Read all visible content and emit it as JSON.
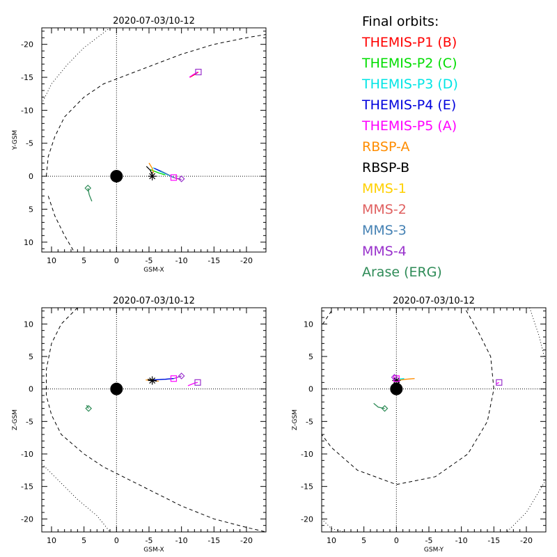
{
  "chart_data": [
    {
      "type": "scatter",
      "title": "2020-07-03/10-12",
      "xlabel": "GSM-X",
      "ylabel": "Y-GSM",
      "xlim": [
        11.5,
        -23
      ],
      "ylim": [
        11.5,
        -22.5
      ],
      "xticks": [
        "10",
        "5",
        "0",
        "-5",
        "-10",
        "-15",
        "-20"
      ],
      "yticks": [
        "-20",
        "-15",
        "-10",
        "-5",
        "0",
        "5",
        "10"
      ],
      "earth": [
        0,
        0
      ],
      "magnetopause_dashed": [
        [
          10.8,
          0
        ],
        [
          10.5,
          -3
        ],
        [
          9.5,
          -6
        ],
        [
          8,
          -9
        ],
        [
          5,
          -12
        ],
        [
          2,
          -14
        ],
        [
          -2,
          -15.5
        ],
        [
          -6,
          -17
        ],
        [
          -10,
          -18.5
        ],
        [
          -15,
          -20
        ],
        [
          -20,
          -21
        ],
        [
          -23,
          -21.5
        ]
      ],
      "magnetopause_dashed_south": [
        [
          10.5,
          3
        ],
        [
          9.5,
          6
        ],
        [
          8,
          9
        ],
        [
          6.5,
          11.5
        ]
      ],
      "bow_shock_dotted": [
        [
          11.5,
          -11
        ],
        [
          10,
          -14
        ],
        [
          7.5,
          -17
        ],
        [
          5,
          -19.5
        ],
        [
          3,
          -21
        ],
        [
          1,
          -22.5
        ]
      ],
      "series": [
        {
          "name": "THEMIS-P1 (B)",
          "color": "#ff0000",
          "points": [
            [
              -12.6,
              -15.8
            ],
            [
              -12,
              -15.4
            ],
            [
              -11.3,
              -15
            ]
          ]
        },
        {
          "name": "THEMIS-P2 (C)",
          "color": "#00dd00",
          "points": [
            [
              -5.2,
              -1
            ],
            [
              -6.5,
              -0.5
            ],
            [
              -7.5,
              -0.2
            ]
          ]
        },
        {
          "name": "THEMIS-P3 (D)",
          "color": "#00e5e5",
          "points": [
            [
              -5.6,
              -1.3
            ],
            [
              -7,
              -0.6
            ],
            [
              -8.8,
              0.2
            ]
          ]
        },
        {
          "name": "THEMIS-P4 (E)",
          "color": "#0000dd",
          "points": [
            [
              -5.8,
              -1.2
            ],
            [
              -7.2,
              -0.6
            ],
            [
              -8.8,
              0.2
            ]
          ]
        },
        {
          "name": "THEMIS-P5 (A)",
          "color": "#ff00ff",
          "points": [
            [
              -12.5,
              -15.8
            ],
            [
              -11.8,
              -15.4
            ],
            [
              -11.2,
              -15
            ]
          ]
        },
        {
          "name": "RBSP-A",
          "color": "#ff8c00",
          "points": [
            [
              -5,
              -2
            ],
            [
              -5.5,
              -1.2
            ],
            [
              -5.7,
              -0.5
            ]
          ]
        },
        {
          "name": "RBSP-B",
          "color": "#000000",
          "points": [
            [
              -4.6,
              -1.5
            ],
            [
              -5.2,
              -0.9
            ],
            [
              -5.6,
              0
            ]
          ]
        },
        {
          "name": "MMS-1",
          "color": "#ffd000",
          "points": [
            [
              -8.8,
              0.2
            ],
            [
              -9.8,
              0.5
            ]
          ]
        },
        {
          "name": "MMS-2",
          "color": "#e06060",
          "points": [
            [
              -8.8,
              0.2
            ],
            [
              -9.8,
              0.5
            ]
          ]
        },
        {
          "name": "MMS-3",
          "color": "#4682b4",
          "points": [
            [
              -6.8,
              -0.8
            ],
            [
              -8.8,
              0.2
            ]
          ]
        },
        {
          "name": "MMS-4",
          "color": "#9932cc",
          "points": [
            [
              -8.8,
              0.2
            ],
            [
              -10,
              0.5
            ]
          ]
        },
        {
          "name": "Arase (ERG)",
          "color": "#2e8b57",
          "points": [
            [
              4.4,
              1.8
            ],
            [
              4.2,
              2.8
            ],
            [
              3.8,
              3.8
            ]
          ]
        }
      ],
      "markers": [
        {
          "shape": "star",
          "at": [
            -5.5,
            0
          ]
        },
        {
          "shape": "square",
          "at": [
            -8.8,
            0.2
          ],
          "color": "#ff00ff"
        },
        {
          "shape": "diamond",
          "at": [
            -10,
            0.4
          ],
          "color": "#9932cc"
        },
        {
          "shape": "square",
          "at": [
            -12.6,
            -15.8
          ],
          "color": "#9932cc"
        },
        {
          "shape": "diamond",
          "at": [
            4.4,
            1.8
          ],
          "color": "#2e8b57"
        }
      ]
    },
    {
      "type": "scatter",
      "title": "2020-07-03/10-12",
      "xlabel": "GSM-X",
      "ylabel": "Z-GSM",
      "xlim": [
        11.5,
        -23
      ],
      "ylim": [
        -22,
        12.5
      ],
      "xticks": [
        "10",
        "5",
        "0",
        "-5",
        "-10",
        "-15",
        "-20"
      ],
      "yticks": [
        "10",
        "5",
        "0",
        "-5",
        "-10",
        "-15",
        "-20"
      ],
      "earth": [
        0,
        0
      ],
      "magnetopause_dashed": [
        [
          6,
          12.5
        ],
        [
          8.5,
          10
        ],
        [
          10,
          7
        ],
        [
          10.8,
          3
        ],
        [
          10.8,
          -1
        ],
        [
          10,
          -4
        ],
        [
          8.5,
          -7
        ],
        [
          5,
          -10
        ],
        [
          2,
          -12
        ],
        [
          -2,
          -14
        ],
        [
          -6,
          -16
        ],
        [
          -10,
          -18
        ],
        [
          -15,
          -20
        ],
        [
          -20,
          -21.3
        ],
        [
          -23,
          -22
        ]
      ],
      "bow_shock_dotted": [
        [
          11.5,
          -11.5
        ],
        [
          9,
          -14
        ],
        [
          6,
          -17
        ],
        [
          3,
          -19.5
        ],
        [
          1,
          -22
        ]
      ],
      "series": [
        {
          "name": "THEMIS-P3 (D)",
          "color": "#00e5e5",
          "points": [
            [
              -5.6,
              1.4
            ],
            [
              -7.5,
              1.5
            ],
            [
              -8.8,
              1.6
            ]
          ]
        },
        {
          "name": "THEMIS-P4 (E)",
          "color": "#0000dd",
          "points": [
            [
              -5.6,
              1.4
            ],
            [
              -7.5,
              1.5
            ],
            [
              -8.8,
              1.6
            ]
          ]
        },
        {
          "name": "THEMIS-P5 (A)",
          "color": "#ff00ff",
          "points": [
            [
              -11,
              0.5
            ],
            [
              -12,
              0.9
            ],
            [
              -12.5,
              1
            ]
          ]
        },
        {
          "name": "RBSP-A",
          "color": "#ff8c00",
          "points": [
            [
              -4.5,
              1.4
            ],
            [
              -5.5,
              1.3
            ],
            [
              -6.5,
              1.2
            ]
          ]
        },
        {
          "name": "RBSP-B",
          "color": "#000000",
          "points": [
            [
              -4.8,
              1.5
            ],
            [
              -5.6,
              1.3
            ],
            [
              -6.2,
              1.2
            ]
          ]
        },
        {
          "name": "MMS-4",
          "color": "#9932cc",
          "points": [
            [
              -8.8,
              1.6
            ],
            [
              -10,
              2
            ]
          ]
        },
        {
          "name": "Arase (ERG)",
          "color": "#2e8b57",
          "points": [
            [
              4.6,
              -2.5
            ],
            [
              4.3,
              -3
            ]
          ]
        }
      ],
      "markers": [
        {
          "shape": "star",
          "at": [
            -5.5,
            1.3
          ]
        },
        {
          "shape": "square",
          "at": [
            -8.8,
            1.6
          ],
          "color": "#ff00ff"
        },
        {
          "shape": "diamond",
          "at": [
            -10,
            2
          ],
          "color": "#9932cc"
        },
        {
          "shape": "square",
          "at": [
            -12.5,
            1
          ],
          "color": "#9932cc"
        },
        {
          "shape": "diamond",
          "at": [
            4.3,
            -3
          ],
          "color": "#2e8b57"
        }
      ]
    },
    {
      "type": "scatter",
      "title": "2020-07-03/10-12",
      "xlabel": "GSM-Y",
      "ylabel": "Z-GSM",
      "xlim": [
        11.5,
        -23
      ],
      "ylim": [
        -22,
        12.5
      ],
      "xticks": [
        "10",
        "5",
        "0",
        "-5",
        "-10",
        "-15",
        "-20"
      ],
      "yticks": [
        "10",
        "5",
        "0",
        "-5",
        "-10",
        "-15",
        "-20"
      ],
      "earth": [
        0,
        0
      ],
      "magnetopause_dashed": [
        [
          10,
          12
        ],
        [
          12,
          9
        ],
        [
          13.5,
          5
        ],
        [
          14,
          0
        ],
        [
          13,
          -5
        ],
        [
          10,
          -9
        ],
        [
          6,
          -12.5
        ],
        [
          0,
          -14.7
        ],
        [
          -6,
          -13.5
        ],
        [
          -11,
          -10
        ],
        [
          -14,
          -5
        ],
        [
          -15,
          0
        ],
        [
          -14.5,
          5
        ],
        [
          -12.5,
          9
        ],
        [
          -10.5,
          12.5
        ]
      ],
      "bow_shock_dotted": [
        [
          -20.5,
          12.5
        ],
        [
          -22,
          8
        ],
        [
          -23,
          4
        ]
      ],
      "bow_shock_dotted_2": [
        [
          -23,
          -14
        ],
        [
          -20,
          -19
        ],
        [
          -17,
          -22
        ]
      ],
      "bow_shock_dotted_3": [
        [
          11.5,
          -20
        ],
        [
          10,
          -21.5
        ],
        [
          8,
          -22
        ]
      ],
      "series": [
        {
          "name": "THEMIS-P5 (A)",
          "color": "#ff00ff",
          "points": [
            [
              -15.4,
              0.8
            ],
            [
              -15.8,
              1
            ]
          ]
        },
        {
          "name": "RBSP-A",
          "color": "#ff8c00",
          "points": [
            [
              0,
              1.3
            ],
            [
              -1.5,
              1.5
            ],
            [
              -2.8,
              1.6
            ]
          ]
        },
        {
          "name": "RBSP-B",
          "color": "#000000",
          "points": [
            [
              -0.5,
              1
            ],
            [
              0,
              1.3
            ],
            [
              0.3,
              1.6
            ]
          ]
        },
        {
          "name": "THEMIS-P3 (D)",
          "color": "#00e5e5",
          "points": [
            [
              -0.2,
              1.5
            ],
            [
              -1.2,
              1.6
            ]
          ]
        },
        {
          "name": "MMS-4",
          "color": "#9932cc",
          "points": [
            [
              0.3,
              1.8
            ],
            [
              -0.2,
              1.3
            ]
          ]
        },
        {
          "name": "Arase (ERG)",
          "color": "#2e8b57",
          "points": [
            [
              3.5,
              -2.2
            ],
            [
              2.8,
              -2.8
            ],
            [
              1.8,
              -3
            ]
          ]
        }
      ],
      "markers": [
        {
          "shape": "star",
          "at": [
            0,
            1.3
          ]
        },
        {
          "shape": "square",
          "at": [
            0,
            1.6
          ],
          "color": "#ff00ff"
        },
        {
          "shape": "diamond",
          "at": [
            0.3,
            1.8
          ],
          "color": "#9932cc"
        },
        {
          "shape": "square",
          "at": [
            -15.8,
            1
          ],
          "color": "#9932cc"
        },
        {
          "shape": "diamond",
          "at": [
            1.8,
            -3
          ],
          "color": "#2e8b57"
        }
      ]
    }
  ],
  "legend": {
    "title": "Final orbits:",
    "items": [
      {
        "label": "THEMIS-P1 (B)",
        "color": "#ff0000"
      },
      {
        "label": "THEMIS-P2 (C)",
        "color": "#00dd00"
      },
      {
        "label": "THEMIS-P3 (D)",
        "color": "#00e5e5"
      },
      {
        "label": "THEMIS-P4 (E)",
        "color": "#0000dd"
      },
      {
        "label": "THEMIS-P5 (A)",
        "color": "#ff00ff"
      },
      {
        "label": "RBSP-A",
        "color": "#ff8c00"
      },
      {
        "label": "RBSP-B",
        "color": "#000000"
      },
      {
        "label": "MMS-1",
        "color": "#ffd000"
      },
      {
        "label": "MMS-2",
        "color": "#e06060"
      },
      {
        "label": "MMS-3",
        "color": "#4682b4"
      },
      {
        "label": "MMS-4",
        "color": "#9932cc"
      },
      {
        "label": "Arase (ERG)",
        "color": "#2e8b57"
      }
    ]
  }
}
